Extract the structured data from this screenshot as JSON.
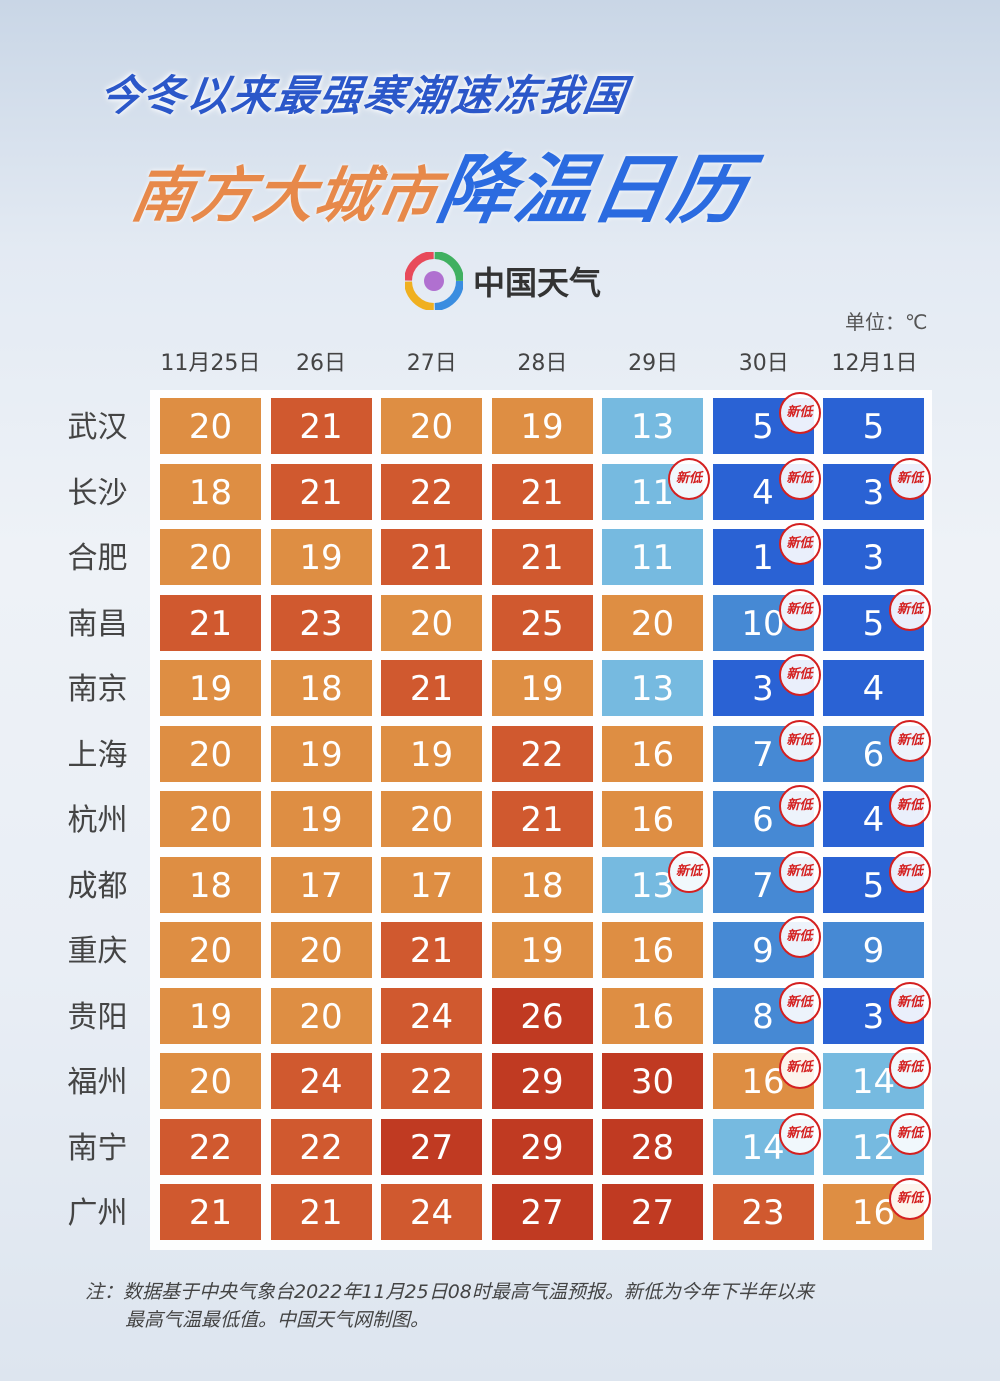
{
  "title_line1": "今冬以来最强寒潮速冻我国",
  "title_line2_a": "南方大城市",
  "title_line2_b": "降温日历",
  "logo": "中国天气",
  "unit": "单位：℃",
  "badge_label": "新低",
  "note_line1": "注：数据基于中央气象台2022年11月25日08时最高气温预报。新低为今年下半年以来",
  "note_line2": "最高气温最低值。中国天气网制图。",
  "colors": {
    "warm_light": "#DE8E43",
    "warm_mid": "#D0592F",
    "warm_dark": "#C03A22",
    "cold_light": "#76BAE0",
    "cold_mid": "#4689D4",
    "cold_dark": "#2A62D4"
  },
  "chart_data": {
    "type": "heatmap",
    "categories": [
      "11月25日",
      "26日",
      "27日",
      "28日",
      "29日",
      "30日",
      "12月1日"
    ],
    "rows": [
      "武汉",
      "长沙",
      "合肥",
      "南昌",
      "南京",
      "上海",
      "杭州",
      "成都",
      "重庆",
      "贵阳",
      "福州",
      "南宁",
      "广州"
    ],
    "values": [
      [
        20,
        21,
        20,
        19,
        13,
        5,
        5
      ],
      [
        18,
        21,
        22,
        21,
        11,
        4,
        3
      ],
      [
        20,
        19,
        21,
        21,
        11,
        1,
        3
      ],
      [
        21,
        23,
        20,
        25,
        20,
        10,
        5
      ],
      [
        19,
        18,
        21,
        19,
        13,
        3,
        4
      ],
      [
        20,
        19,
        19,
        22,
        16,
        7,
        6
      ],
      [
        20,
        19,
        20,
        21,
        16,
        6,
        4
      ],
      [
        18,
        17,
        17,
        18,
        13,
        7,
        5
      ],
      [
        20,
        20,
        21,
        19,
        16,
        9,
        9
      ],
      [
        19,
        20,
        24,
        26,
        16,
        8,
        3
      ],
      [
        20,
        24,
        22,
        29,
        30,
        16,
        14
      ],
      [
        22,
        22,
        27,
        29,
        28,
        14,
        12
      ],
      [
        21,
        21,
        24,
        27,
        27,
        23,
        16
      ]
    ],
    "new_low": [
      [
        0,
        5
      ],
      [
        1,
        4
      ],
      [
        1,
        5
      ],
      [
        1,
        6
      ],
      [
        2,
        5
      ],
      [
        3,
        5
      ],
      [
        3,
        6
      ],
      [
        4,
        5
      ],
      [
        5,
        5
      ],
      [
        5,
        6
      ],
      [
        6,
        5
      ],
      [
        6,
        6
      ],
      [
        7,
        4
      ],
      [
        7,
        5
      ],
      [
        7,
        6
      ],
      [
        8,
        5
      ],
      [
        9,
        5
      ],
      [
        9,
        6
      ],
      [
        10,
        5
      ],
      [
        10,
        6
      ],
      [
        11,
        5
      ],
      [
        11,
        6
      ],
      [
        12,
        6
      ]
    ]
  }
}
